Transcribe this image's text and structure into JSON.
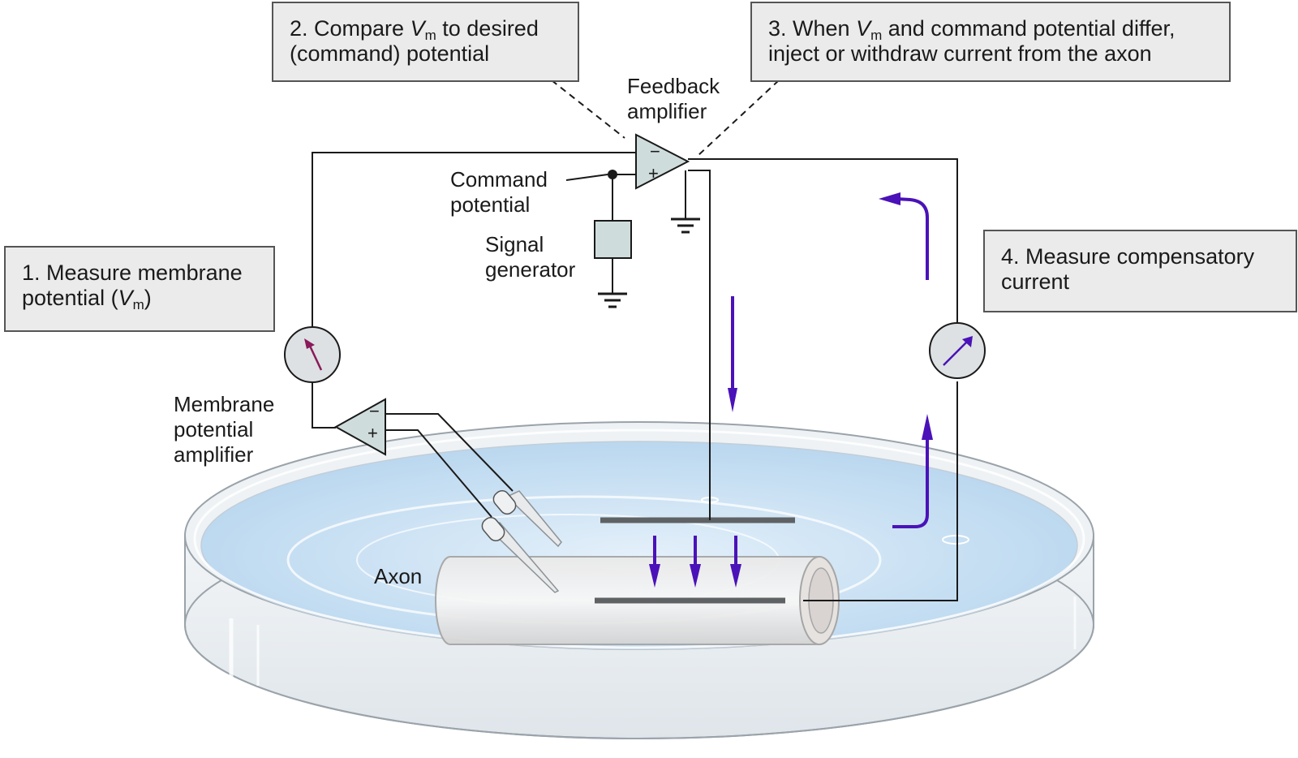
{
  "steps": {
    "step1": {
      "line1": "1. Measure membrane",
      "line2_pre": "potential (",
      "var": "V",
      "sub": "m",
      "line2_post": ")"
    },
    "step2": {
      "line1_pre": "2. Compare ",
      "var": "V",
      "sub": "m",
      "line1_post": " to desired",
      "line2": "(command) potential"
    },
    "step3": {
      "line1_pre": "3. When ",
      "var": "V",
      "sub": "m",
      "line1_post": " and command potential differ,",
      "line2": "inject or withdraw current from the axon"
    },
    "step4": {
      "line1": "4. Measure compensatory",
      "line2": "current"
    }
  },
  "labels": {
    "feedback_amplifier": [
      "Feedback",
      "amplifier"
    ],
    "command_potential": [
      "Command",
      "potential"
    ],
    "signal_generator": [
      "Signal",
      "generator"
    ],
    "membrane_potential_amplifier": [
      "Membrane",
      "potential",
      "amplifier"
    ],
    "axon": "Axon"
  },
  "amplifier_signs": {
    "minus": "−",
    "plus": "+"
  },
  "colors": {
    "current_arrow": "#4a12b8",
    "voltmeter_needle": "#8a1a5a",
    "ammeter_needle": "#4a12b8",
    "bath": "#cfe3f3",
    "box_fill": "#ebebeb",
    "amplifier_fill": "#cfdcdc"
  }
}
